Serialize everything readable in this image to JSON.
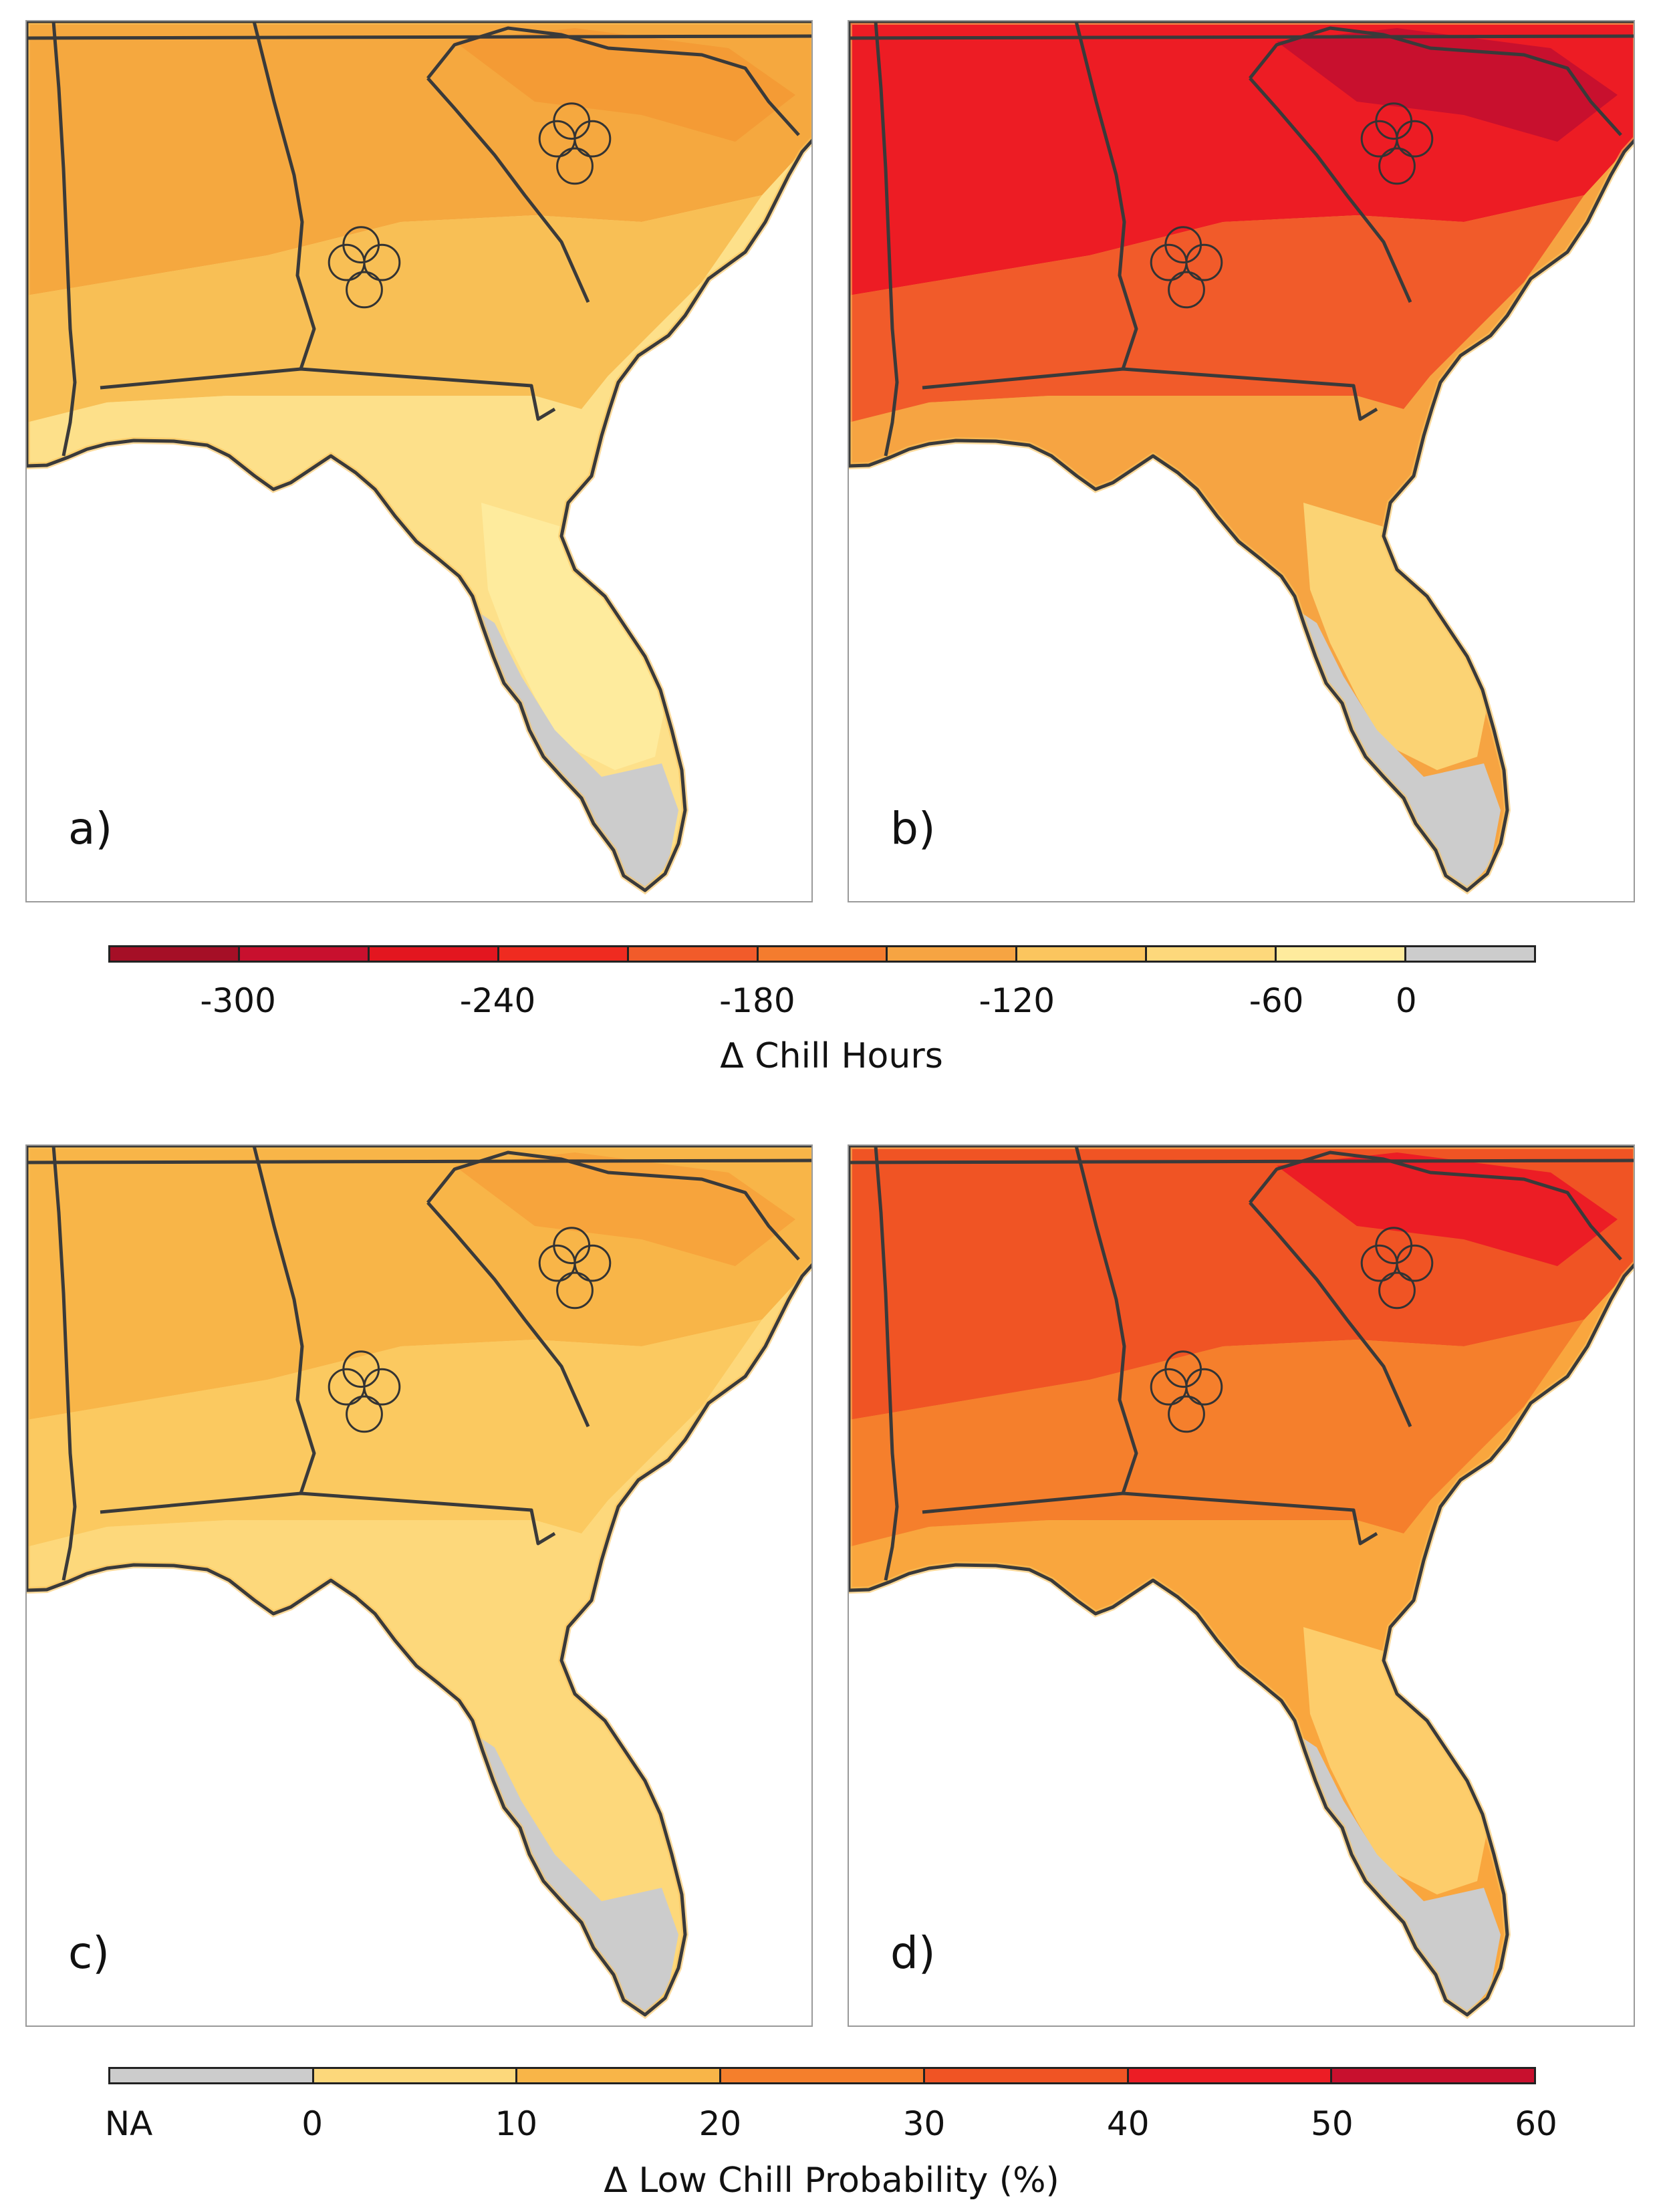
{
  "panels": [
    {
      "label": "a)",
      "fills": {
        "north": "#f5a83f",
        "mid": "#f8bf55",
        "south": "#fde08a",
        "deep": "#feeb9d",
        "tip": "#cccccc",
        "ne": "#f49b35"
      }
    },
    {
      "label": "b)",
      "fills": {
        "north": "#ed1c24",
        "mid": "#f15b2a",
        "south": "#f6a442",
        "deep": "#fbd374",
        "tip": "#cccccc",
        "ne": "#c8102e"
      }
    },
    {
      "label": "c)",
      "fills": {
        "north": "#f8b548",
        "mid": "#fbc960",
        "south": "#fdd87b",
        "deep": "#fdd87b",
        "tip": "#cccccc",
        "ne": "#f7a43c"
      }
    },
    {
      "label": "d)",
      "fills": {
        "north": "#f05424",
        "mid": "#f57f2c",
        "south": "#f9a63e",
        "deep": "#fdcd6b",
        "tip": "#cccccc",
        "ne": "#ec1d25"
      }
    }
  ],
  "colorbar_chill": {
    "label": "Δ Chill Hours",
    "colors": [
      "#a50f26",
      "#c8102e",
      "#e3161f",
      "#ef2b20",
      "#f15b2a",
      "#f47c2e",
      "#f6a442",
      "#fbc55e",
      "#fdd87b",
      "#feeb9d",
      "#cccccc"
    ],
    "ticks": [
      "-300",
      "-240",
      "-180",
      "-120",
      "-60",
      "0"
    ]
  },
  "colorbar_prob": {
    "label": "Δ Low Chill Probability (%)",
    "colors": [
      "#cccccc",
      "#fdd87b",
      "#f8b548",
      "#f57f2c",
      "#f05424",
      "#ec1d25",
      "#c8102e"
    ],
    "ticks": [
      "NA",
      "0",
      "10",
      "20",
      "30",
      "40",
      "50",
      "60"
    ]
  }
}
